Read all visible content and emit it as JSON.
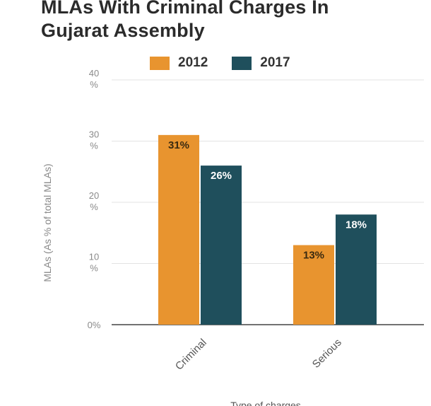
{
  "chart_data": {
    "type": "bar",
    "title": "MLAs With Criminal Charges In\nGujarat Assembly",
    "categories": [
      "Criminal",
      "Serious"
    ],
    "series": [
      {
        "name": "2012",
        "color": "#e8942f",
        "values": [
          31,
          13
        ],
        "labels": [
          "31%",
          "13%"
        ]
      },
      {
        "name": "2017",
        "color": "#1f4f5c",
        "values": [
          26,
          18
        ],
        "labels": [
          "26%",
          "18%"
        ]
      }
    ],
    "ylim": [
      0,
      40
    ],
    "yticks": [
      {
        "value": 0,
        "label": "0%"
      },
      {
        "value": 10,
        "label": "10\n%"
      },
      {
        "value": 20,
        "label": "20\n%"
      },
      {
        "value": 30,
        "label": "30\n%"
      },
      {
        "value": 40,
        "label": "40\n%"
      }
    ],
    "ylabel": "MLAs (As % of total MLAs)",
    "xlabel": "Type of charges",
    "grid": true,
    "legend_position": "top"
  }
}
